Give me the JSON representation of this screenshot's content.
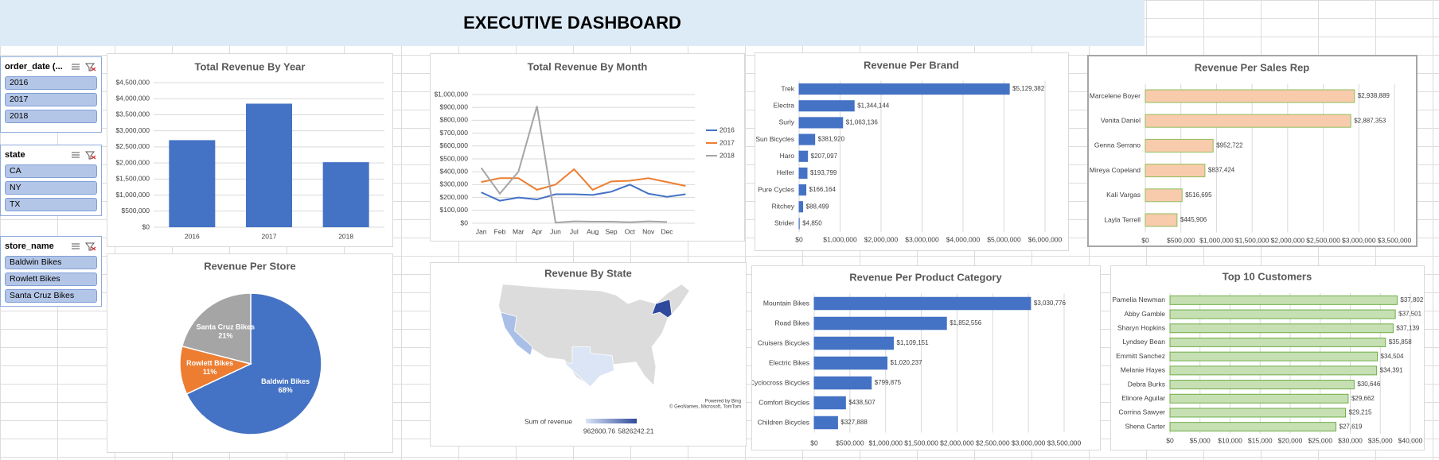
{
  "title": "EXECUTIVE DASHBOARD",
  "slicers": [
    {
      "title": "order_date (...",
      "items": [
        "2016",
        "2017",
        "2018"
      ]
    },
    {
      "title": "state",
      "items": [
        "CA",
        "NY",
        "TX"
      ]
    },
    {
      "title": "store_name",
      "items": [
        "Baldwin Bikes",
        "Rowlett Bikes",
        "Santa Cruz Bikes"
      ]
    }
  ],
  "chart_data": [
    {
      "type": "bar",
      "title": "Total Revenue By Year",
      "categories": [
        "2016",
        "2017",
        "2018"
      ],
      "values": [
        2709484,
        3845515,
        2023989
      ],
      "color": "#4472c4",
      "ylim": [
        0,
        4500000
      ],
      "yticks": [
        {
          "value": 0,
          "label": "$0"
        },
        {
          "value": 500000,
          "label": "$500,000"
        },
        {
          "value": 1000000,
          "label": "$1,000,000"
        },
        {
          "value": 1500000,
          "label": "$1,500,000"
        },
        {
          "value": 2000000,
          "label": "$2,000,000"
        },
        {
          "value": 2500000,
          "label": "$2,500,000"
        },
        {
          "value": 3000000,
          "label": "$3,000,000"
        },
        {
          "value": 3500000,
          "label": "$3,500,000"
        },
        {
          "value": 4000000,
          "label": "$4,000,000"
        },
        {
          "value": 4500000,
          "label": "$4,500,000"
        }
      ],
      "grid": true
    },
    {
      "type": "line",
      "title": "Total Revenue By Month",
      "categories": [
        "Jan",
        "Feb",
        "Mar",
        "Apr",
        "Jun",
        "Jul",
        "Aug",
        "Sep",
        "Oct",
        "Nov",
        "Dec",
        null
      ],
      "series": [
        {
          "name": "2016",
          "color": "#4472c4",
          "values": [
            240000,
            175000,
            200000,
            185000,
            225000,
            225000,
            220000,
            245000,
            300000,
            230000,
            205000,
            225000
          ]
        },
        {
          "name": "2017",
          "color": "#ed7d31",
          "values": [
            320000,
            350000,
            350000,
            260000,
            300000,
            420000,
            260000,
            325000,
            330000,
            350000,
            320000,
            290000
          ]
        },
        {
          "name": "2018",
          "color": "#a5a5a5",
          "values": [
            430000,
            230000,
            400000,
            910000,
            5000,
            15000,
            12000,
            12000,
            8000,
            15000,
            10000,
            null
          ]
        }
      ],
      "ylim": [
        0,
        1000000
      ],
      "yticks": [
        {
          "value": 0,
          "label": "$0"
        },
        {
          "value": 100000,
          "label": "$100,000"
        },
        {
          "value": 200000,
          "label": "$200,000"
        },
        {
          "value": 300000,
          "label": "$300,000"
        },
        {
          "value": 400000,
          "label": "$400,000"
        },
        {
          "value": 500000,
          "label": "$500,000"
        },
        {
          "value": 600000,
          "label": "$600,000"
        },
        {
          "value": 700000,
          "label": "$700,000"
        },
        {
          "value": 800000,
          "label": "$800,000"
        },
        {
          "value": 900000,
          "label": "$900,000"
        },
        {
          "value": 1000000,
          "label": "$1,000,000"
        }
      ],
      "grid": true,
      "legend": "right"
    },
    {
      "type": "hbar",
      "title": "Revenue Per Brand",
      "categories": [
        "Trek",
        "Electra",
        "Surly",
        "Sun Bicycles",
        "Haro",
        "Heller",
        "Pure Cycles",
        "Ritchey",
        "Strider"
      ],
      "values": [
        5129382,
        1344144,
        1063136,
        381920,
        207097,
        193799,
        166164,
        88499,
        4850
      ],
      "value_labels": [
        "$5,129,382",
        "$1,344,144",
        "$1,063,136",
        "$381,920",
        "$207,097",
        "$193,799",
        "$166,164",
        "$88,499",
        "$4,850"
      ],
      "color": "#4472c4",
      "edgecolor": "#4472c4",
      "xlim": [
        0,
        6000000
      ],
      "xticks": [
        {
          "value": 0,
          "label": "$0"
        },
        {
          "value": 1000000,
          "label": "$1,000,000"
        },
        {
          "value": 2000000,
          "label": "$2,000,000"
        },
        {
          "value": 3000000,
          "label": "$3,000,000"
        },
        {
          "value": 4000000,
          "label": "$4,000,000"
        },
        {
          "value": 5000000,
          "label": "$5,000,000"
        },
        {
          "value": 6000000,
          "label": "$6,000,000"
        }
      ],
      "grid": true
    },
    {
      "type": "hbar",
      "title": "Revenue Per Sales Rep",
      "categories": [
        "Marcelene Boyer",
        "Venita Daniel",
        "Genna Serrano",
        "Mireya Copeland",
        "Kali Vargas",
        "Layla Terrell"
      ],
      "values": [
        2938889,
        2887353,
        952722,
        837424,
        516695,
        445906
      ],
      "value_labels": [
        "$2,938,889",
        "$2,887,353",
        "$952,722",
        "$837,424",
        "$516,695",
        "$445,906"
      ],
      "color": "#f8cbad",
      "edgecolor": "#8fbf5a",
      "xlim": [
        0,
        3500000
      ],
      "xticks": [
        {
          "value": 0,
          "label": "$0"
        },
        {
          "value": 500000,
          "label": "$500,000"
        },
        {
          "value": 1000000,
          "label": "$1,000,000"
        },
        {
          "value": 1500000,
          "label": "$1,500,000"
        },
        {
          "value": 2000000,
          "label": "$2,000,000"
        },
        {
          "value": 2500000,
          "label": "$2,500,000"
        },
        {
          "value": 3000000,
          "label": "$3,000,000"
        },
        {
          "value": 3500000,
          "label": "$3,500,000"
        }
      ],
      "grid": true
    },
    {
      "type": "pie",
      "title": "Revenue Per Store",
      "categories": [
        "Baldwin Bikes",
        "Rowlett Bikes",
        "Santa Cruz Bikes"
      ],
      "values": [
        68,
        11,
        21
      ],
      "value_labels": [
        "68%",
        "11%",
        "21%"
      ],
      "colors": [
        "#4472c4",
        "#ed7d31",
        "#a5a5a5"
      ]
    },
    {
      "type": "map",
      "title": "Revenue By State",
      "legend_title": "Sum of revenue",
      "legend_min": 962600.76,
      "legend_max": 5826242.21,
      "credit": "Powered by Bing",
      "attribution": "© GeoNames, Microsoft, TomTom"
    },
    {
      "type": "hbar",
      "title": "Revenue Per Product Category",
      "categories": [
        "Mountain Bikes",
        "Road Bikes",
        "Cruisers Bicycles",
        "Electric Bikes",
        "Cyclocross Bicycles",
        "Comfort Bicycles",
        "Children Bicycles"
      ],
      "values": [
        3030776,
        1852556,
        1109151,
        1020237,
        799875,
        438507,
        327888
      ],
      "value_labels": [
        "$3,030,776",
        "$1,852,556",
        "$1,109,151",
        "$1,020,237",
        "$799,875",
        "$438,507",
        "$327,888"
      ],
      "color": "#4472c4",
      "edgecolor": "#4472c4",
      "xlim": [
        0,
        3500000
      ],
      "xticks": [
        {
          "value": 0,
          "label": "$0"
        },
        {
          "value": 500000,
          "label": "$500,000"
        },
        {
          "value": 1000000,
          "label": "$1,000,000"
        },
        {
          "value": 1500000,
          "label": "$1,500,000"
        },
        {
          "value": 2000000,
          "label": "$2,000,000"
        },
        {
          "value": 2500000,
          "label": "$2,500,000"
        },
        {
          "value": 3000000,
          "label": "$3,000,000"
        },
        {
          "value": 3500000,
          "label": "$3,500,000"
        }
      ],
      "grid": true
    },
    {
      "type": "hbar",
      "title": "Top 10 Customers",
      "categories": [
        "Pamelia Newman",
        "Abby Gamble",
        "Sharyn Hopkins",
        "Lyndsey Bean",
        "Emmitt Sanchez",
        "Melanie Hayes",
        "Debra Burks",
        "Elinore Aguilar",
        "Corrina Sawyer",
        "Shena Carter"
      ],
      "values": [
        37802,
        37501,
        37139,
        35858,
        34504,
        34391,
        30646,
        29662,
        29215,
        27619
      ],
      "value_labels": [
        "$37,802",
        "$37,501",
        "$37,139",
        "$35,858",
        "$34,504",
        "$34,391",
        "$30,646",
        "$29,662",
        "$29,215",
        "$27,619"
      ],
      "color": "#c6e0b4",
      "edgecolor": "#70ad47",
      "xlim": [
        0,
        40000
      ],
      "xticks": [
        {
          "value": 0,
          "label": "$0"
        },
        {
          "value": 5000,
          "label": "$5,000"
        },
        {
          "value": 10000,
          "label": "$10,000"
        },
        {
          "value": 15000,
          "label": "$15,000"
        },
        {
          "value": 20000,
          "label": "$20,000"
        },
        {
          "value": 25000,
          "label": "$25,000"
        },
        {
          "value": 30000,
          "label": "$30,000"
        },
        {
          "value": 35000,
          "label": "$35,000"
        },
        {
          "value": 40000,
          "label": "$40,000"
        }
      ],
      "grid": true
    }
  ]
}
